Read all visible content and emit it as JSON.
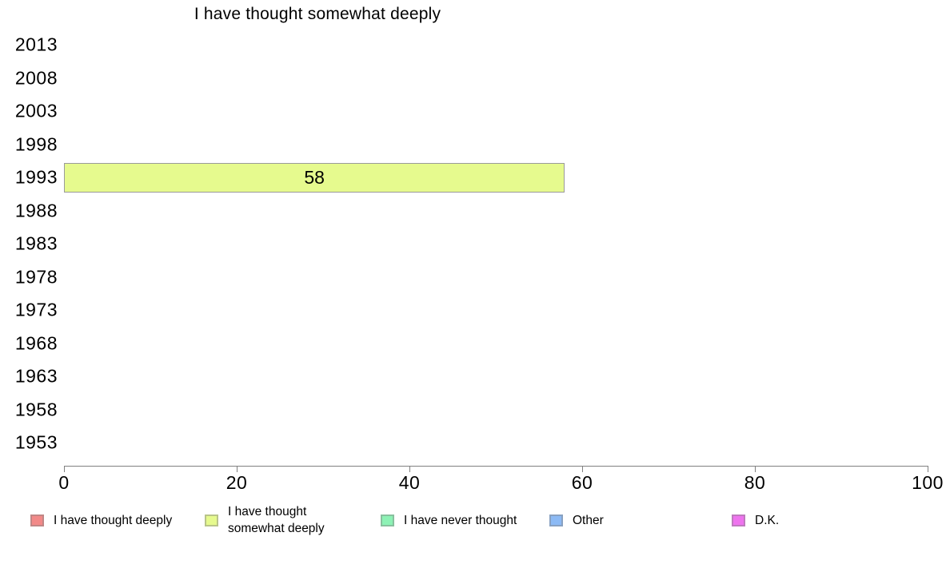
{
  "chart_data": {
    "type": "bar",
    "orientation": "horizontal",
    "title": "I have thought somewhat deeply",
    "categories": [
      "2013",
      "2008",
      "2003",
      "1998",
      "1993",
      "1988",
      "1983",
      "1978",
      "1973",
      "1968",
      "1963",
      "1958",
      "1953"
    ],
    "xlim": [
      0,
      100
    ],
    "x_ticks": [
      0,
      20,
      40,
      60,
      80,
      100
    ],
    "grid": false,
    "legend_position": "bottom",
    "data_labels": true,
    "axis_color": "#808080",
    "bar_border_color": "#9a9a9a",
    "series": [
      {
        "name": "I have thought deeply",
        "color": "#F28988",
        "values": [
          null,
          null,
          null,
          null,
          null,
          null,
          null,
          null,
          null,
          null,
          null,
          null,
          null
        ]
      },
      {
        "name": "I have thought somewhat deeply",
        "color": "#E6FA8E",
        "values": [
          null,
          null,
          null,
          null,
          58,
          null,
          null,
          null,
          null,
          null,
          null,
          null,
          null
        ]
      },
      {
        "name": "I have never thought",
        "color": "#8DF2B5",
        "values": [
          null,
          null,
          null,
          null,
          null,
          null,
          null,
          null,
          null,
          null,
          null,
          null,
          null
        ]
      },
      {
        "name": "Other",
        "color": "#8CBAF5",
        "values": [
          null,
          null,
          null,
          null,
          null,
          null,
          null,
          null,
          null,
          null,
          null,
          null,
          null
        ]
      },
      {
        "name": "D.K.",
        "color": "#EE73EE",
        "values": [
          null,
          null,
          null,
          null,
          null,
          null,
          null,
          null,
          null,
          null,
          null,
          null,
          null
        ]
      }
    ]
  }
}
